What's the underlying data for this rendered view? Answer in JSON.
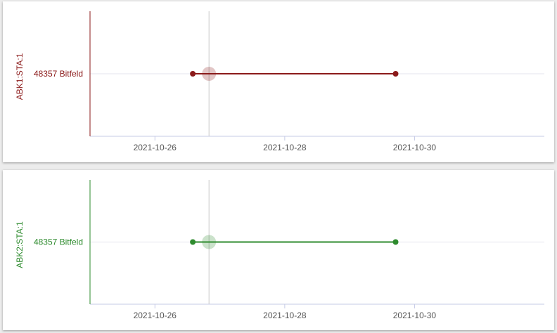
{
  "chart_data": [
    {
      "type": "line",
      "ylabel": "ABK1:STA:1",
      "categories": [
        "48357 Bitfeld"
      ],
      "x_ticks": [
        "2021-10-26",
        "2021-10-28",
        "2021-10-30"
      ],
      "xlim": [
        "2021-10-25",
        "2021-11-01"
      ],
      "grid": true,
      "series": [
        {
          "color": "#8b1a1a",
          "points": [
            {
              "x": "2021-10-26 14:00",
              "y": "48357 Bitfeld"
            },
            {
              "x": "2021-10-29 17:00",
              "y": "48357 Bitfeld"
            }
          ]
        }
      ],
      "marker": {
        "x": "2021-10-26 20:00",
        "y": "48357 Bitfeld",
        "color": "#8b1a1a"
      },
      "cursor_x": "2021-10-26 20:00"
    },
    {
      "type": "line",
      "ylabel": "ABK2:STA:1",
      "categories": [
        "48357 Bitfeld"
      ],
      "x_ticks": [
        "2021-10-26",
        "2021-10-28",
        "2021-10-30"
      ],
      "xlim": [
        "2021-10-25",
        "2021-11-01"
      ],
      "grid": true,
      "series": [
        {
          "color": "#2e8b2e",
          "points": [
            {
              "x": "2021-10-26 14:00",
              "y": "48357 Bitfeld"
            },
            {
              "x": "2021-10-29 17:00",
              "y": "48357 Bitfeld"
            }
          ]
        }
      ],
      "marker": {
        "x": "2021-10-26 20:00",
        "y": "48357 Bitfeld",
        "color": "#2e8b2e"
      },
      "cursor_x": "2021-10-26 20:00"
    }
  ]
}
